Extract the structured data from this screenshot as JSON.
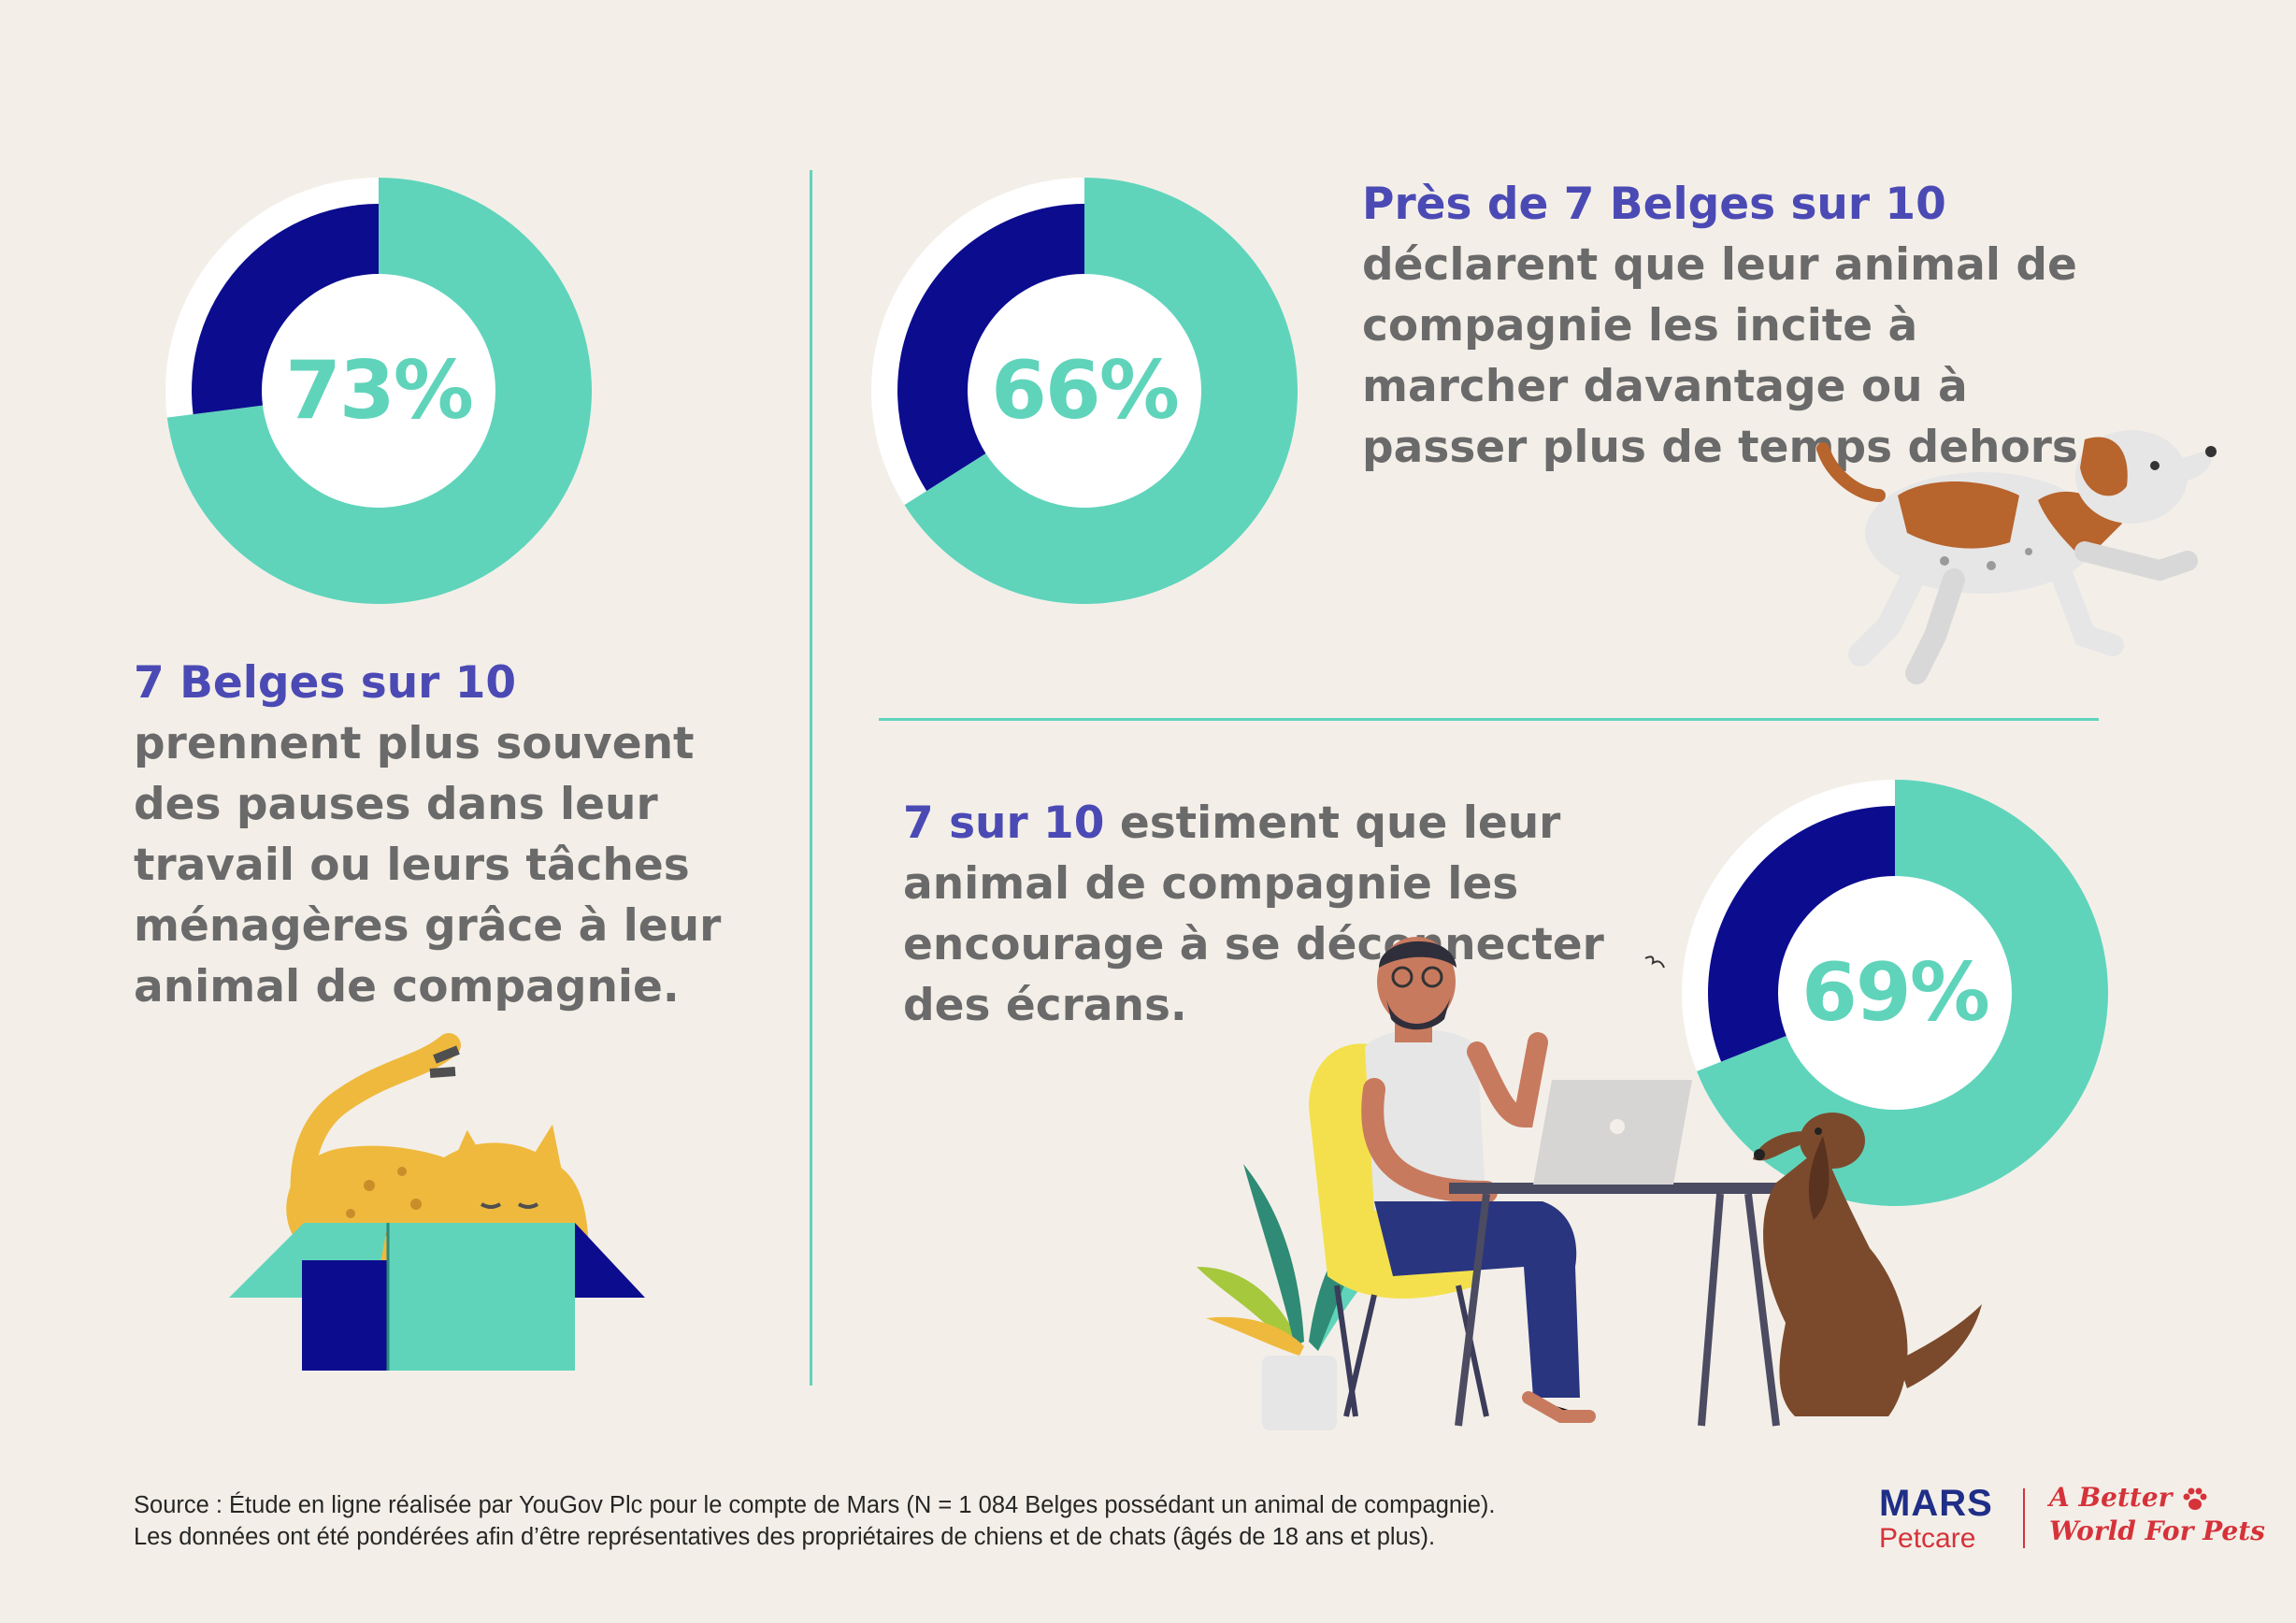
{
  "chart_data": [
    {
      "type": "pie",
      "variant": "donut",
      "values": [
        73,
        27
      ],
      "colors": [
        "#5fd4bb",
        "#0c0c8f"
      ],
      "center_label": "73%"
    },
    {
      "type": "pie",
      "variant": "donut",
      "values": [
        66,
        34
      ],
      "colors": [
        "#5fd4bb",
        "#0c0c8f"
      ],
      "center_label": "66%"
    },
    {
      "type": "pie",
      "variant": "donut",
      "values": [
        69,
        31
      ],
      "colors": [
        "#5fd4bb",
        "#0c0c8f"
      ],
      "center_label": "69%"
    }
  ],
  "stats": {
    "breaks": {
      "highlight": "7 Belges sur 10",
      "text": " prennent plus souvent des pauses dans leur travail ou leurs tâches ménagères grâce à leur animal de compagnie."
    },
    "walking": {
      "highlight": "Près de 7 Belges sur 10",
      "text": "déclarent que leur animal de compagnie les incite à marcher davantage ou à passer plus de temps dehors."
    },
    "screens": {
      "highlight": "7 sur 10",
      "text": " estiment que leur animal de compagnie les encourage à se déconnecter des écrans."
    }
  },
  "footer": {
    "source_line1": "Source : Étude en ligne réalisée par YouGov Plc pour le compte de Mars (N = 1 084 Belges possédant un animal de compagnie).",
    "source_line2": "Les données ont été pondérées afin d’être représentatives des propriétaires de chiens et de chats (âgés de 18 ans et plus).",
    "brand": "MARS",
    "brand_sub": "Petcare",
    "tagline_line1": "A Better",
    "tagline_line2": "World For Pets"
  },
  "colors": {
    "accent": "#5fd4bb",
    "navy": "#0c0c8f",
    "highlight": "#4b4ab5",
    "body_text": "#6b6a6a",
    "background": "#f3efe8",
    "brand_red": "#d6323a"
  },
  "icons": [
    "cat-in-box-illustration",
    "running-dog-illustration",
    "man-laptop-dog-illustration",
    "paw-icon"
  ]
}
